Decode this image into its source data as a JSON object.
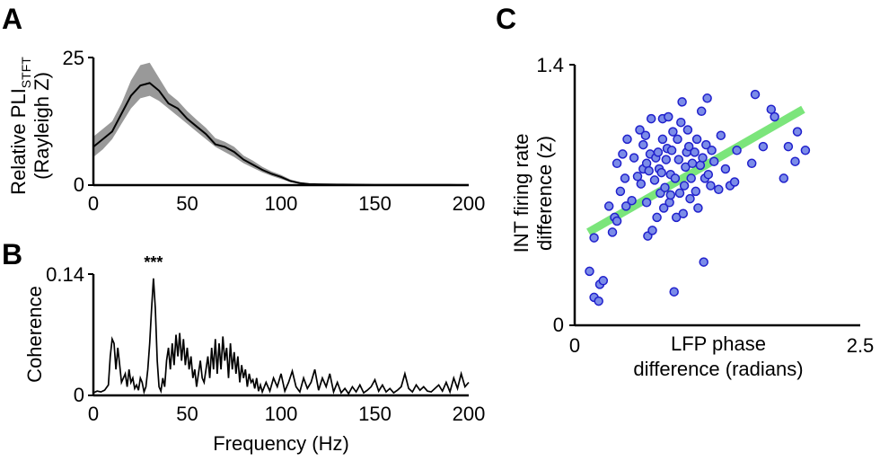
{
  "figure": {
    "panels": [
      {
        "id": "A",
        "label": "A"
      },
      {
        "id": "B",
        "label": "B"
      },
      {
        "id": "C",
        "label": "C"
      }
    ]
  },
  "chart_data": [
    {
      "panel": "A",
      "type": "line",
      "xlabel": "",
      "ylabel_line1": "Relative PLI",
      "ylabel_sub": "STFT",
      "ylabel_line2": "(Rayleigh Z)",
      "xlim": [
        0,
        200
      ],
      "ylim": [
        0,
        25
      ],
      "xticks": [
        "0",
        "50",
        "100",
        "150",
        "200"
      ],
      "yticks": [
        "0",
        "25"
      ],
      "colors": {
        "line": "#000000",
        "band": "#999999"
      },
      "x": [
        0,
        5,
        10,
        15,
        20,
        25,
        30,
        35,
        40,
        45,
        50,
        55,
        60,
        65,
        70,
        75,
        80,
        85,
        90,
        95,
        100,
        105,
        110,
        115,
        120,
        130,
        140,
        150,
        160,
        170,
        180,
        190,
        200
      ],
      "mean": [
        7.5,
        9,
        10.5,
        14,
        17.5,
        19.5,
        20,
        18.5,
        16,
        15,
        13,
        11.5,
        10,
        8,
        7.5,
        6.5,
        5,
        4,
        3,
        2.2,
        1.6,
        0.8,
        0.4,
        0.2,
        0.15,
        0.1,
        0.08,
        0.06,
        0.05,
        0.04,
        0.03,
        0.03,
        0.02
      ],
      "lower": [
        5.5,
        7,
        9,
        12,
        15,
        17,
        17.5,
        16.5,
        15,
        13.5,
        12,
        10.5,
        9,
        7.5,
        6.5,
        5.5,
        4.3,
        3.4,
        2.5,
        1.8,
        1.2,
        0.6,
        0.3,
        0.15,
        0.1,
        0.07,
        0.05,
        0.04,
        0.03,
        0.02,
        0.02,
        0.02,
        0.01
      ],
      "upper": [
        9.5,
        11,
        12.5,
        16,
        20.5,
        23.5,
        24,
        21,
        18,
        16.5,
        14.5,
        12.8,
        11.2,
        9.2,
        8.5,
        7.5,
        5.8,
        4.8,
        3.6,
        2.7,
        2.0,
        1.1,
        0.6,
        0.3,
        0.22,
        0.15,
        0.12,
        0.09,
        0.07,
        0.06,
        0.05,
        0.04,
        0.03
      ]
    },
    {
      "panel": "B",
      "type": "line",
      "xlabel": "Frequency (Hz)",
      "ylabel": "Coherence",
      "xlim": [
        0,
        200
      ],
      "ylim": [
        0,
        0.14
      ],
      "xticks": [
        "0",
        "50",
        "100",
        "150",
        "200"
      ],
      "yticks": [
        "0",
        "0.14"
      ],
      "annotation": {
        "text": "***",
        "x": 32,
        "y": 0.14,
        "color": "#ff0000"
      },
      "colors": {
        "line": "#000000"
      },
      "x": [
        0,
        2,
        4,
        6,
        8,
        9,
        10,
        11,
        12,
        13,
        14,
        15,
        16,
        17,
        18,
        19,
        20,
        21,
        22,
        23,
        24,
        25,
        26,
        27,
        28,
        29,
        30,
        31,
        32,
        33,
        34,
        35,
        36,
        37,
        38,
        39,
        40,
        41,
        42,
        43,
        44,
        45,
        46,
        47,
        48,
        49,
        50,
        51,
        52,
        53,
        54,
        55,
        56,
        57,
        58,
        59,
        60,
        61,
        62,
        63,
        64,
        65,
        66,
        67,
        68,
        69,
        70,
        71,
        72,
        73,
        74,
        75,
        76,
        77,
        78,
        79,
        80,
        81,
        82,
        83,
        84,
        85,
        86,
        87,
        88,
        89,
        90,
        92,
        94,
        96,
        98,
        100,
        102,
        104,
        106,
        108,
        110,
        112,
        114,
        116,
        118,
        120,
        122,
        124,
        126,
        128,
        130,
        132,
        134,
        136,
        138,
        140,
        142,
        144,
        146,
        148,
        150,
        152,
        154,
        156,
        158,
        160,
        162,
        164,
        166,
        168,
        170,
        172,
        174,
        176,
        178,
        180,
        182,
        184,
        186,
        188,
        190,
        192,
        194,
        196,
        198,
        200
      ],
      "y": [
        0.003,
        0.005,
        0.004,
        0.006,
        0.012,
        0.045,
        0.065,
        0.06,
        0.03,
        0.055,
        0.035,
        0.015,
        0.02,
        0.025,
        0.01,
        0.03,
        0.015,
        0.02,
        0.008,
        0.012,
        0.006,
        0.02,
        0.015,
        0.004,
        0.01,
        0.03,
        0.06,
        0.1,
        0.135,
        0.1,
        0.04,
        0.01,
        0.005,
        0.02,
        0.01,
        0.04,
        0.055,
        0.03,
        0.06,
        0.035,
        0.07,
        0.045,
        0.072,
        0.04,
        0.065,
        0.035,
        0.055,
        0.03,
        0.045,
        0.02,
        0.03,
        0.01,
        0.025,
        0.04,
        0.02,
        0.015,
        0.03,
        0.045,
        0.02,
        0.055,
        0.03,
        0.065,
        0.025,
        0.06,
        0.03,
        0.068,
        0.04,
        0.055,
        0.02,
        0.06,
        0.03,
        0.05,
        0.025,
        0.045,
        0.015,
        0.035,
        0.02,
        0.03,
        0.01,
        0.025,
        0.015,
        0.018,
        0.008,
        0.02,
        0.005,
        0.012,
        0.004,
        0.015,
        0.005,
        0.02,
        0.01,
        0.025,
        0.005,
        0.015,
        0.028,
        0.01,
        0.004,
        0.02,
        0.008,
        0.015,
        0.03,
        0.006,
        0.02,
        0.01,
        0.025,
        0.004,
        0.015,
        0.003,
        0.008,
        0.002,
        0.01,
        0.004,
        0.012,
        0.003,
        0.006,
        0.01,
        0.018,
        0.005,
        0.012,
        0.004,
        0.008,
        0.003,
        0.006,
        0.01,
        0.025,
        0.008,
        0.004,
        0.012,
        0.006,
        0.01,
        0.005,
        0.004,
        0.008,
        0.012,
        0.005,
        0.015,
        0.004,
        0.02,
        0.008,
        0.025,
        0.01,
        0.015
      ]
    },
    {
      "panel": "C",
      "type": "scatter",
      "xlabel_line1": "LFP phase",
      "xlabel_line2": "difference (radians)",
      "ylabel_line1": "INT firing rate",
      "ylabel_line2": "difference (z)",
      "xlim": [
        0,
        2.5
      ],
      "ylim": [
        0,
        1.4
      ],
      "xticks": [
        "0",
        "2.5"
      ],
      "yticks": [
        "0",
        "1.4"
      ],
      "colors": {
        "point_fill": "#7b8ce8",
        "point_stroke": "#2020cc",
        "fit": "#7be57b"
      },
      "fit": {
        "x": [
          0.12,
          2.0
        ],
        "y": [
          0.5,
          1.16
        ]
      },
      "points": [
        {
          "x": 0.13,
          "y": 0.29
        },
        {
          "x": 0.17,
          "y": 0.15
        },
        {
          "x": 0.21,
          "y": 0.13
        },
        {
          "x": 0.22,
          "y": 0.22
        },
        {
          "x": 0.25,
          "y": 0.24
        },
        {
          "x": 0.17,
          "y": 0.47
        },
        {
          "x": 0.3,
          "y": 0.64
        },
        {
          "x": 0.33,
          "y": 0.5
        },
        {
          "x": 0.35,
          "y": 0.58
        },
        {
          "x": 0.37,
          "y": 0.56
        },
        {
          "x": 0.37,
          "y": 0.87
        },
        {
          "x": 0.4,
          "y": 0.72
        },
        {
          "x": 0.42,
          "y": 0.92
        },
        {
          "x": 0.44,
          "y": 0.79
        },
        {
          "x": 0.45,
          "y": 0.64
        },
        {
          "x": 0.46,
          "y": 1.0
        },
        {
          "x": 0.5,
          "y": 0.67
        },
        {
          "x": 0.52,
          "y": 0.9
        },
        {
          "x": 0.55,
          "y": 0.8
        },
        {
          "x": 0.57,
          "y": 1.05
        },
        {
          "x": 0.58,
          "y": 0.76
        },
        {
          "x": 0.6,
          "y": 0.84
        },
        {
          "x": 0.6,
          "y": 0.97
        },
        {
          "x": 0.62,
          "y": 1.02
        },
        {
          "x": 0.63,
          "y": 0.66
        },
        {
          "x": 0.63,
          "y": 0.87
        },
        {
          "x": 0.64,
          "y": 0.48
        },
        {
          "x": 0.65,
          "y": 0.83
        },
        {
          "x": 0.66,
          "y": 0.92
        },
        {
          "x": 0.67,
          "y": 1.11
        },
        {
          "x": 0.68,
          "y": 0.51
        },
        {
          "x": 0.7,
          "y": 0.78
        },
        {
          "x": 0.71,
          "y": 0.9
        },
        {
          "x": 0.72,
          "y": 0.58
        },
        {
          "x": 0.73,
          "y": 0.93
        },
        {
          "x": 0.74,
          "y": 0.84
        },
        {
          "x": 0.75,
          "y": 0.71
        },
        {
          "x": 0.76,
          "y": 0.82
        },
        {
          "x": 0.77,
          "y": 1.0
        },
        {
          "x": 0.77,
          "y": 1.11
        },
        {
          "x": 0.78,
          "y": 0.63
        },
        {
          "x": 0.79,
          "y": 0.74
        },
        {
          "x": 0.8,
          "y": 0.89
        },
        {
          "x": 0.81,
          "y": 0.95
        },
        {
          "x": 0.82,
          "y": 1.12
        },
        {
          "x": 0.83,
          "y": 0.66
        },
        {
          "x": 0.84,
          "y": 0.7
        },
        {
          "x": 0.84,
          "y": 0.81
        },
        {
          "x": 0.85,
          "y": 0.94
        },
        {
          "x": 0.86,
          "y": 1.04
        },
        {
          "x": 0.87,
          "y": 0.18
        },
        {
          "x": 0.88,
          "y": 0.79
        },
        {
          "x": 0.89,
          "y": 0.58
        },
        {
          "x": 0.9,
          "y": 1.0
        },
        {
          "x": 0.91,
          "y": 0.89
        },
        {
          "x": 0.92,
          "y": 0.71
        },
        {
          "x": 0.93,
          "y": 1.09
        },
        {
          "x": 0.94,
          "y": 1.2
        },
        {
          "x": 0.95,
          "y": 0.6
        },
        {
          "x": 0.96,
          "y": 0.75
        },
        {
          "x": 0.97,
          "y": 0.85
        },
        {
          "x": 0.98,
          "y": 0.93
        },
        {
          "x": 0.99,
          "y": 1.05
        },
        {
          "x": 1.0,
          "y": 0.96
        },
        {
          "x": 1.01,
          "y": 0.68
        },
        {
          "x": 1.02,
          "y": 0.79
        },
        {
          "x": 1.03,
          "y": 0.87
        },
        {
          "x": 1.05,
          "y": 0.93
        },
        {
          "x": 1.06,
          "y": 0.72
        },
        {
          "x": 1.07,
          "y": 1.0
        },
        {
          "x": 1.08,
          "y": 0.63
        },
        {
          "x": 1.1,
          "y": 0.86
        },
        {
          "x": 1.11,
          "y": 1.15
        },
        {
          "x": 1.12,
          "y": 0.9
        },
        {
          "x": 1.13,
          "y": 0.34
        },
        {
          "x": 1.14,
          "y": 0.79
        },
        {
          "x": 1.15,
          "y": 0.97
        },
        {
          "x": 1.16,
          "y": 1.22
        },
        {
          "x": 1.17,
          "y": 0.81
        },
        {
          "x": 1.19,
          "y": 0.75
        },
        {
          "x": 1.2,
          "y": 0.94
        },
        {
          "x": 1.22,
          "y": 0.88
        },
        {
          "x": 1.26,
          "y": 0.73
        },
        {
          "x": 1.28,
          "y": 1.02
        },
        {
          "x": 1.32,
          "y": 0.84
        },
        {
          "x": 1.36,
          "y": 0.75
        },
        {
          "x": 1.4,
          "y": 0.77
        },
        {
          "x": 1.42,
          "y": 0.94
        },
        {
          "x": 1.55,
          "y": 0.87
        },
        {
          "x": 1.58,
          "y": 1.24
        },
        {
          "x": 1.65,
          "y": 0.96
        },
        {
          "x": 1.72,
          "y": 1.16
        },
        {
          "x": 1.75,
          "y": 1.12
        },
        {
          "x": 1.83,
          "y": 0.79
        },
        {
          "x": 1.87,
          "y": 0.96
        },
        {
          "x": 1.93,
          "y": 0.88
        },
        {
          "x": 1.95,
          "y": 1.04
        },
        {
          "x": 2.02,
          "y": 0.94
        }
      ]
    }
  ]
}
